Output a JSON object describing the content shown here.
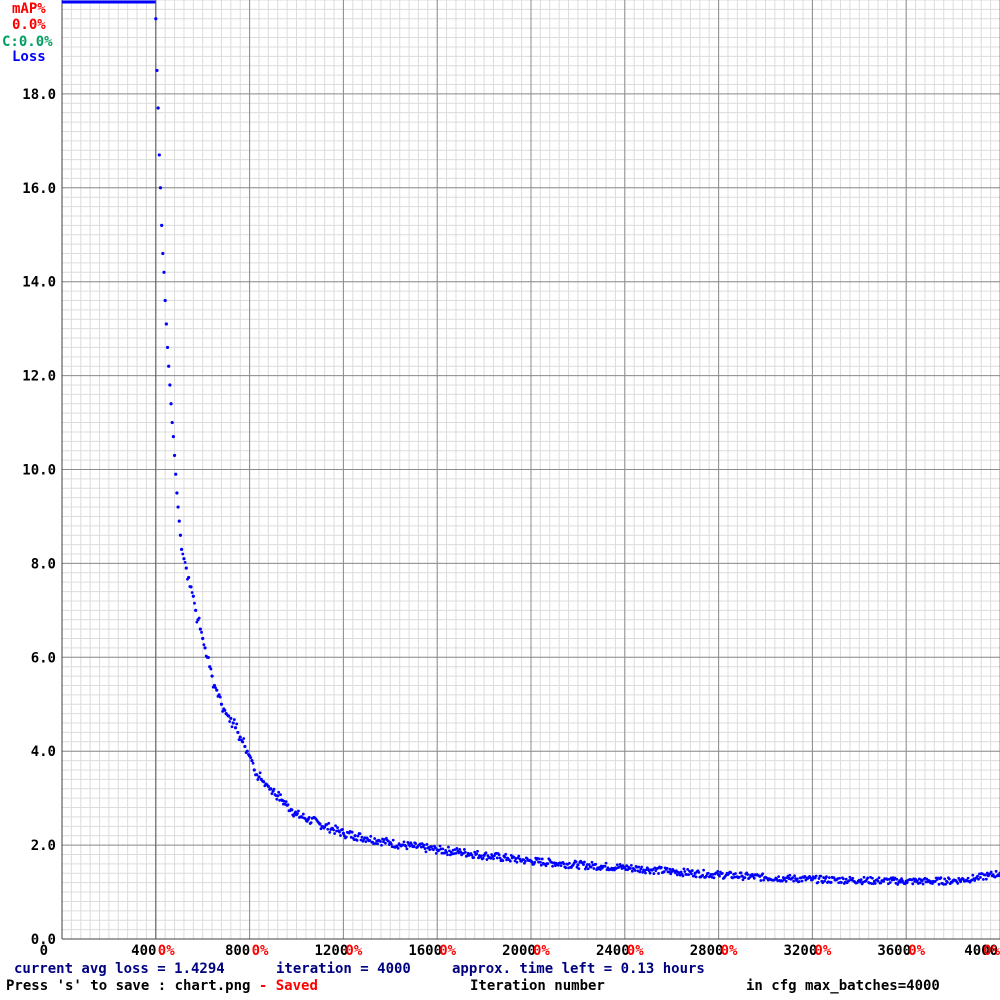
{
  "chart_data": {
    "type": "scatter",
    "title": "",
    "xlabel": "Iteration number",
    "ylabel": "Loss",
    "xlim": [
      0,
      4000
    ],
    "ylim": [
      0,
      20
    ],
    "grid": true,
    "x_ticks": [
      "0",
      "400",
      "800",
      "1200",
      "1600",
      "2000",
      "2400",
      "2800",
      "3200",
      "3600",
      "4000"
    ],
    "y_ticks": [
      "0.0",
      "2.0",
      "4.0",
      "6.0",
      "8.0",
      "10.0",
      "12.0",
      "14.0",
      "16.0",
      "18.0"
    ],
    "map_tick_labels": [
      "0%",
      "0%",
      "0%",
      "0%",
      "0%",
      "0%",
      "0%",
      "0%",
      "0%",
      "0%"
    ],
    "legend": [
      "mAP%",
      "0.0%",
      "C:0.0%",
      "Loss"
    ],
    "legend_position": "top-left",
    "colors": {
      "loss": "#0000ff",
      "map": "#ff0000",
      "count": "#00a060",
      "text": "#000000",
      "status": "#000080"
    },
    "series": [
      {
        "name": "Loss",
        "capped_segment": {
          "x": [
            0,
            400
          ],
          "y": 20
        },
        "points": [
          [
            400,
            19.6
          ],
          [
            405,
            18.5
          ],
          [
            410,
            17.7
          ],
          [
            415,
            16.7
          ],
          [
            420,
            16.0
          ],
          [
            425,
            15.2
          ],
          [
            430,
            14.6
          ],
          [
            435,
            14.2
          ],
          [
            440,
            13.6
          ],
          [
            445,
            13.1
          ],
          [
            450,
            12.6
          ],
          [
            455,
            12.2
          ],
          [
            460,
            11.8
          ],
          [
            465,
            11.4
          ],
          [
            470,
            11.0
          ],
          [
            475,
            10.7
          ],
          [
            480,
            10.3
          ],
          [
            485,
            9.9
          ],
          [
            490,
            9.5
          ],
          [
            495,
            9.2
          ],
          [
            500,
            8.9
          ],
          [
            505,
            8.6
          ],
          [
            510,
            8.3
          ],
          [
            520,
            8.1
          ],
          [
            530,
            7.9
          ],
          [
            540,
            7.7
          ],
          [
            550,
            7.5
          ],
          [
            560,
            7.3
          ],
          [
            570,
            7.0
          ],
          [
            580,
            6.8
          ],
          [
            590,
            6.6
          ],
          [
            600,
            6.4
          ],
          [
            610,
            6.2
          ],
          [
            620,
            6.0
          ],
          [
            630,
            5.8
          ],
          [
            640,
            5.6
          ],
          [
            650,
            5.4
          ],
          [
            660,
            5.3
          ],
          [
            670,
            5.2
          ],
          [
            680,
            5.0
          ],
          [
            690,
            4.9
          ],
          [
            700,
            4.8
          ],
          [
            710,
            4.75
          ],
          [
            720,
            4.7
          ],
          [
            730,
            4.6
          ],
          [
            740,
            4.5
          ],
          [
            750,
            4.4
          ],
          [
            760,
            4.3
          ],
          [
            770,
            4.2
          ],
          [
            780,
            4.1
          ],
          [
            790,
            4.0
          ],
          [
            800,
            3.9
          ],
          [
            810,
            3.8
          ],
          [
            820,
            3.6
          ],
          [
            830,
            3.5
          ],
          [
            840,
            3.45
          ],
          [
            850,
            3.4
          ],
          [
            860,
            3.35
          ],
          [
            870,
            3.3
          ],
          [
            880,
            3.25
          ],
          [
            890,
            3.2
          ],
          [
            900,
            3.15
          ],
          [
            920,
            3.05
          ],
          [
            940,
            2.95
          ],
          [
            960,
            2.85
          ],
          [
            980,
            2.75
          ],
          [
            1000,
            2.65
          ],
          [
            1050,
            2.55
          ],
          [
            1100,
            2.45
          ],
          [
            1150,
            2.35
          ],
          [
            1200,
            2.25
          ],
          [
            1250,
            2.2
          ],
          [
            1300,
            2.15
          ],
          [
            1350,
            2.1
          ],
          [
            1400,
            2.05
          ],
          [
            1450,
            2.0
          ],
          [
            1500,
            1.97
          ],
          [
            1600,
            1.9
          ],
          [
            1700,
            1.85
          ],
          [
            1800,
            1.78
          ],
          [
            1900,
            1.72
          ],
          [
            2000,
            1.66
          ],
          [
            2100,
            1.62
          ],
          [
            2200,
            1.58
          ],
          [
            2300,
            1.55
          ],
          [
            2400,
            1.52
          ],
          [
            2500,
            1.48
          ],
          [
            2600,
            1.44
          ],
          [
            2700,
            1.4
          ],
          [
            2800,
            1.37
          ],
          [
            2900,
            1.34
          ],
          [
            3000,
            1.31
          ],
          [
            3100,
            1.29
          ],
          [
            3200,
            1.27
          ],
          [
            3300,
            1.26
          ],
          [
            3400,
            1.25
          ],
          [
            3500,
            1.24
          ],
          [
            3600,
            1.23
          ],
          [
            3700,
            1.23
          ],
          [
            3800,
            1.24
          ],
          [
            3900,
            1.3
          ],
          [
            3950,
            1.35
          ],
          [
            4000,
            1.4
          ]
        ]
      }
    ]
  },
  "status": {
    "avg_loss": "current avg loss = 1.4294",
    "iteration": "iteration = 4000",
    "time_left": "approx. time left = 0.13 hours",
    "save_hint": "Press 's' to save : chart.png",
    "saved": " - Saved",
    "iteration_label": "Iteration number",
    "max_batches": "in cfg max_batches=4000"
  }
}
